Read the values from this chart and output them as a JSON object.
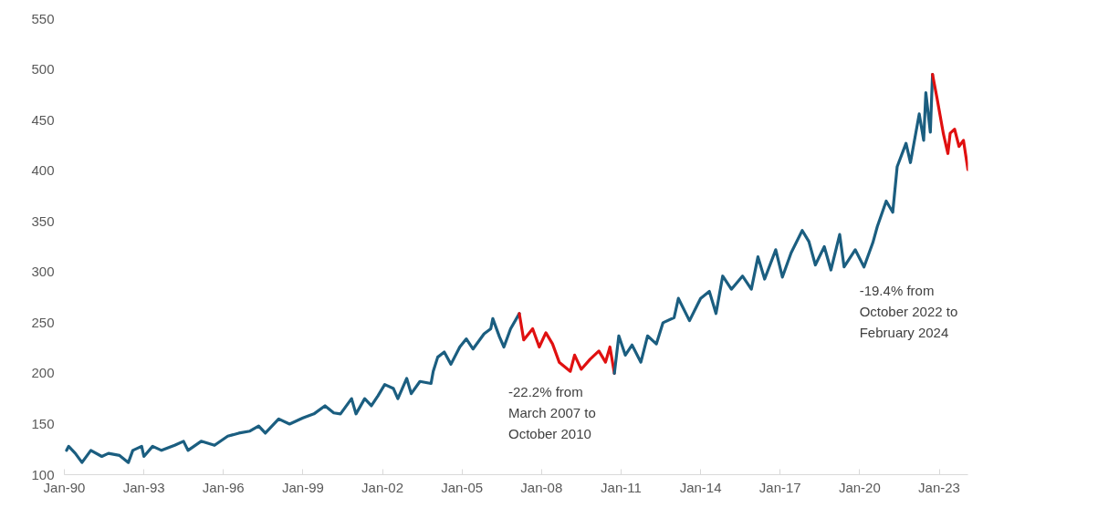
{
  "chart_data": {
    "type": "line",
    "line_style": "solid",
    "marker": "none",
    "grid": false,
    "xlim": [
      "1990-01",
      "2024-02"
    ],
    "ylim": [
      100,
      550
    ],
    "xticks": [
      {
        "value": "1990-01",
        "label": "Jan-90"
      },
      {
        "value": "1993-01",
        "label": "Jan-93"
      },
      {
        "value": "1996-01",
        "label": "Jan-96"
      },
      {
        "value": "1999-01",
        "label": "Jan-99"
      },
      {
        "value": "2002-01",
        "label": "Jan-02"
      },
      {
        "value": "2005-01",
        "label": "Jan-05"
      },
      {
        "value": "2008-01",
        "label": "Jan-08"
      },
      {
        "value": "2011-01",
        "label": "Jan-11"
      },
      {
        "value": "2014-01",
        "label": "Jan-14"
      },
      {
        "value": "2017-01",
        "label": "Jan-17"
      },
      {
        "value": "2020-01",
        "label": "Jan-20"
      },
      {
        "value": "2023-01",
        "label": "Jan-23"
      }
    ],
    "yticks": [
      100,
      150,
      200,
      250,
      300,
      350,
      400,
      450,
      500,
      550
    ],
    "series": [
      {
        "color": "#1b5e80",
        "x": [
          "1990-02",
          "1990-03",
          "1990-06",
          "1990-09",
          "1991-01",
          "1991-06",
          "1991-09",
          "1992-02",
          "1992-06",
          "1992-08",
          "1992-12",
          "1993-01",
          "1993-05",
          "1993-09",
          "1994-03",
          "1994-07",
          "1994-09",
          "1995-03",
          "1995-09",
          "1996-03",
          "1996-08",
          "1997-01",
          "1997-05",
          "1997-08",
          "1998-02",
          "1998-07",
          "1999-01",
          "1999-06",
          "1999-11",
          "2000-03",
          "2000-06",
          "2000-11",
          "2001-01",
          "2001-05",
          "2001-08",
          "2001-11",
          "2002-02",
          "2002-06",
          "2002-08",
          "2002-12",
          "2003-02",
          "2003-06",
          "2003-11",
          "2003-12",
          "2004-02",
          "2004-05",
          "2004-08",
          "2004-12",
          "2005-03",
          "2005-06",
          "2005-11",
          "2006-02",
          "2006-03",
          "2006-06",
          "2006-08",
          "2006-11",
          "2007-03"
        ],
        "values": [
          124,
          128,
          121,
          112,
          124,
          118,
          121,
          119,
          112,
          124,
          128,
          118,
          128,
          124,
          129,
          133,
          124,
          133,
          129,
          138,
          141,
          143,
          148,
          141,
          155,
          150,
          156,
          160,
          168,
          161,
          160,
          175,
          160,
          175,
          168,
          178,
          189,
          185,
          175,
          195,
          180,
          192,
          190,
          202,
          216,
          221,
          209,
          226,
          234,
          224,
          239,
          244,
          254,
          236,
          226,
          244,
          259
        ]
      },
      {
        "color": "#e01010",
        "x": [
          "2007-03",
          "2007-05",
          "2007-09",
          "2007-12",
          "2008-03",
          "2008-06",
          "2008-09",
          "2009-02",
          "2009-04",
          "2009-07",
          "2009-11",
          "2010-03",
          "2010-06",
          "2010-08",
          "2010-10"
        ],
        "values": [
          259,
          233,
          244,
          226,
          240,
          229,
          211,
          202,
          218,
          204,
          214,
          222,
          211,
          226,
          200
        ]
      },
      {
        "color": "#1b5e80",
        "x": [
          "2010-10",
          "2010-12",
          "2011-03",
          "2011-06",
          "2011-10",
          "2012-01",
          "2012-05",
          "2012-08",
          "2013-01",
          "2013-03",
          "2013-08",
          "2014-01",
          "2014-05",
          "2014-08",
          "2014-11",
          "2015-03",
          "2015-08",
          "2015-12",
          "2016-03",
          "2016-06",
          "2016-11",
          "2017-02",
          "2017-06",
          "2017-11",
          "2018-02",
          "2018-05",
          "2018-09",
          "2018-12",
          "2019-04",
          "2019-06",
          "2019-11",
          "2020-03",
          "2020-07",
          "2020-09",
          "2021-01",
          "2021-04",
          "2021-06",
          "2021-10",
          "2021-12",
          "2022-04",
          "2022-06",
          "2022-07",
          "2022-09",
          "2022-10"
        ],
        "values": [
          200,
          237,
          218,
          228,
          211,
          237,
          229,
          250,
          255,
          274,
          252,
          274,
          281,
          259,
          296,
          283,
          296,
          283,
          315,
          293,
          322,
          295,
          319,
          341,
          330,
          307,
          325,
          302,
          337,
          305,
          322,
          305,
          329,
          345,
          370,
          359,
          404,
          427,
          408,
          456,
          430,
          477,
          438,
          495
        ]
      },
      {
        "color": "#e01010",
        "x": [
          "2022-10",
          "2022-12",
          "2023-03",
          "2023-05",
          "2023-06",
          "2023-08",
          "2023-10",
          "2023-12",
          "2024-02"
        ],
        "values": [
          495,
          472,
          436,
          417,
          437,
          441,
          424,
          430,
          401
        ]
      }
    ],
    "annotations": [
      "-22.2% from\nMarch 2007 to\nOctober 2010",
      "-19.4% from\nOctober 2022 to\nFebruary 2024"
    ]
  }
}
